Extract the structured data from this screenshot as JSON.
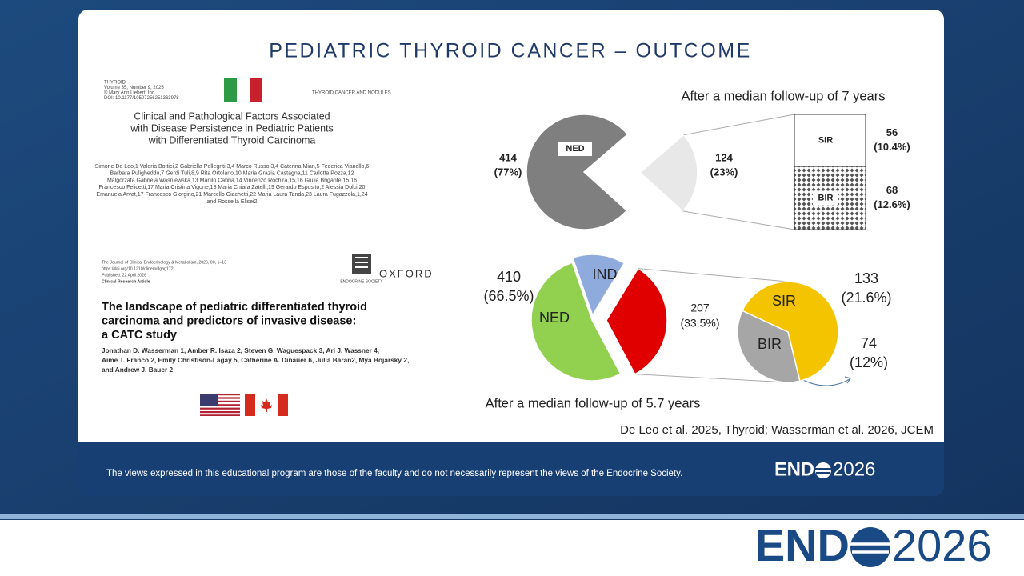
{
  "slide": {
    "title": "PEDIATRIC THYROID CANCER – OUTCOME",
    "citation": "De Leo et al. 2025, Thyroid; Wasserman et al. 2026, JCEM",
    "disclaimer": "The views expressed in this educational program are those of the faculty and do not necessarily represent the views of the Endocrine Society.",
    "logo": {
      "left": "END",
      "right": "2026"
    }
  },
  "paper1": {
    "journal_lines": [
      "THYROID",
      "Volume 35, Number 9, 2025",
      "© Mary Ann Liebert, Inc.",
      "DOI: 10.1177/10507256251363978"
    ],
    "section": "THYROID CANCER AND NODULES",
    "title_lines": [
      "Clinical and Pathological Factors Associated",
      "with Disease Persistence in Pediatric Patients",
      "with Differentiated Thyroid Carcinoma"
    ],
    "author_lines": [
      "Simone De Leo,1 Valeria Bottici,2 Gabriella Pellegriti,3,4 Marco Russo,3,4 Caterina Mian,5 Federica Vianello,6",
      "Barbara Puligheddu,7 Gerdi Tuli,8,9 Rita Ortolano,10 Maria Grazia Castagna,11 Carlotta Pozza,12",
      "Malgorzata Gabriela Wasniewska,13 Manilo Cabria,14 Vincenzo Rochira,15,16 Giulia Brigante,15,16",
      "Francesco Felicetti,17 Maria Cristina Vigone,18 Maria Chiara Zatelli,19 Gerardo Esposito,2 Alessia Dolci,20",
      "Emanuela Arvat,17 Francesco Giorgino,21 Marcello Giachetti,22 Maria Laura Tanda,23 Laura Fugazzola,1,24",
      "and Rossella Elisei2"
    ]
  },
  "paper2": {
    "journal_lines": [
      "The Journal of Clinical Endocrinology & Metabolism, 2026, 00, 1–13",
      "https://doi.org/10.1210/clinem/dgag172",
      "Published: 22 April 2026",
      "Clinical Research Article"
    ],
    "society": "ENDOCRINE SOCIETY",
    "publisher": "OXFORD",
    "title_lines": [
      "The landscape of pediatric differentiated thyroid",
      "carcinoma and predictors of invasive disease:",
      "a CATC study"
    ],
    "author_lines": [
      "Jonathan D. Wasserman 1, Amber R. Isaza 2, Steven G. Waguespack 3, Ari J. Wassner 4,",
      "Aime T. Franco 2, Emily Christison-Lagay 5, Catherine A. Dinauer 6, Julia Baran2, Mya Bojarsky 2,",
      "and Andrew J. Bauer 2"
    ]
  },
  "chart_top": {
    "caption": "After a median follow-up of 7 years",
    "pie": [
      {
        "name": "NED",
        "value": 77,
        "count": 414,
        "value_label": "(77%)",
        "color": "#7f7f7f"
      },
      {
        "value": 23,
        "count": 124,
        "value_label": "(23%)",
        "color": "#e8e8e8"
      }
    ],
    "breakdown": [
      {
        "name": "SIR",
        "value": 10.4,
        "count": 56,
        "value_label": "(10.4%)"
      },
      {
        "name": "BIR",
        "value": 12.6,
        "count": 68,
        "value_label": "(12.6%)"
      }
    ]
  },
  "chart_bottom": {
    "caption": "After a median follow-up of 5.7 years",
    "group_label": {
      "count": 410,
      "value_label": "(66.5%)"
    },
    "pie": [
      {
        "name": "NED",
        "value": 52.5,
        "color": "#92d050"
      },
      {
        "name": "IND",
        "value": 14,
        "color": "#8faadc"
      },
      {
        "value": 33.5,
        "count": 207,
        "value_label": "(33.5%)",
        "color": "#e00000"
      }
    ],
    "breakdown": [
      {
        "name": "SIR",
        "value": 21.6,
        "count": 133,
        "value_label": "(21.6%)",
        "color": "#f5c400"
      },
      {
        "name": "BIR",
        "value": 12,
        "count": 74,
        "value_label": "(12%)",
        "color": "#a6a6a6"
      }
    ]
  }
}
